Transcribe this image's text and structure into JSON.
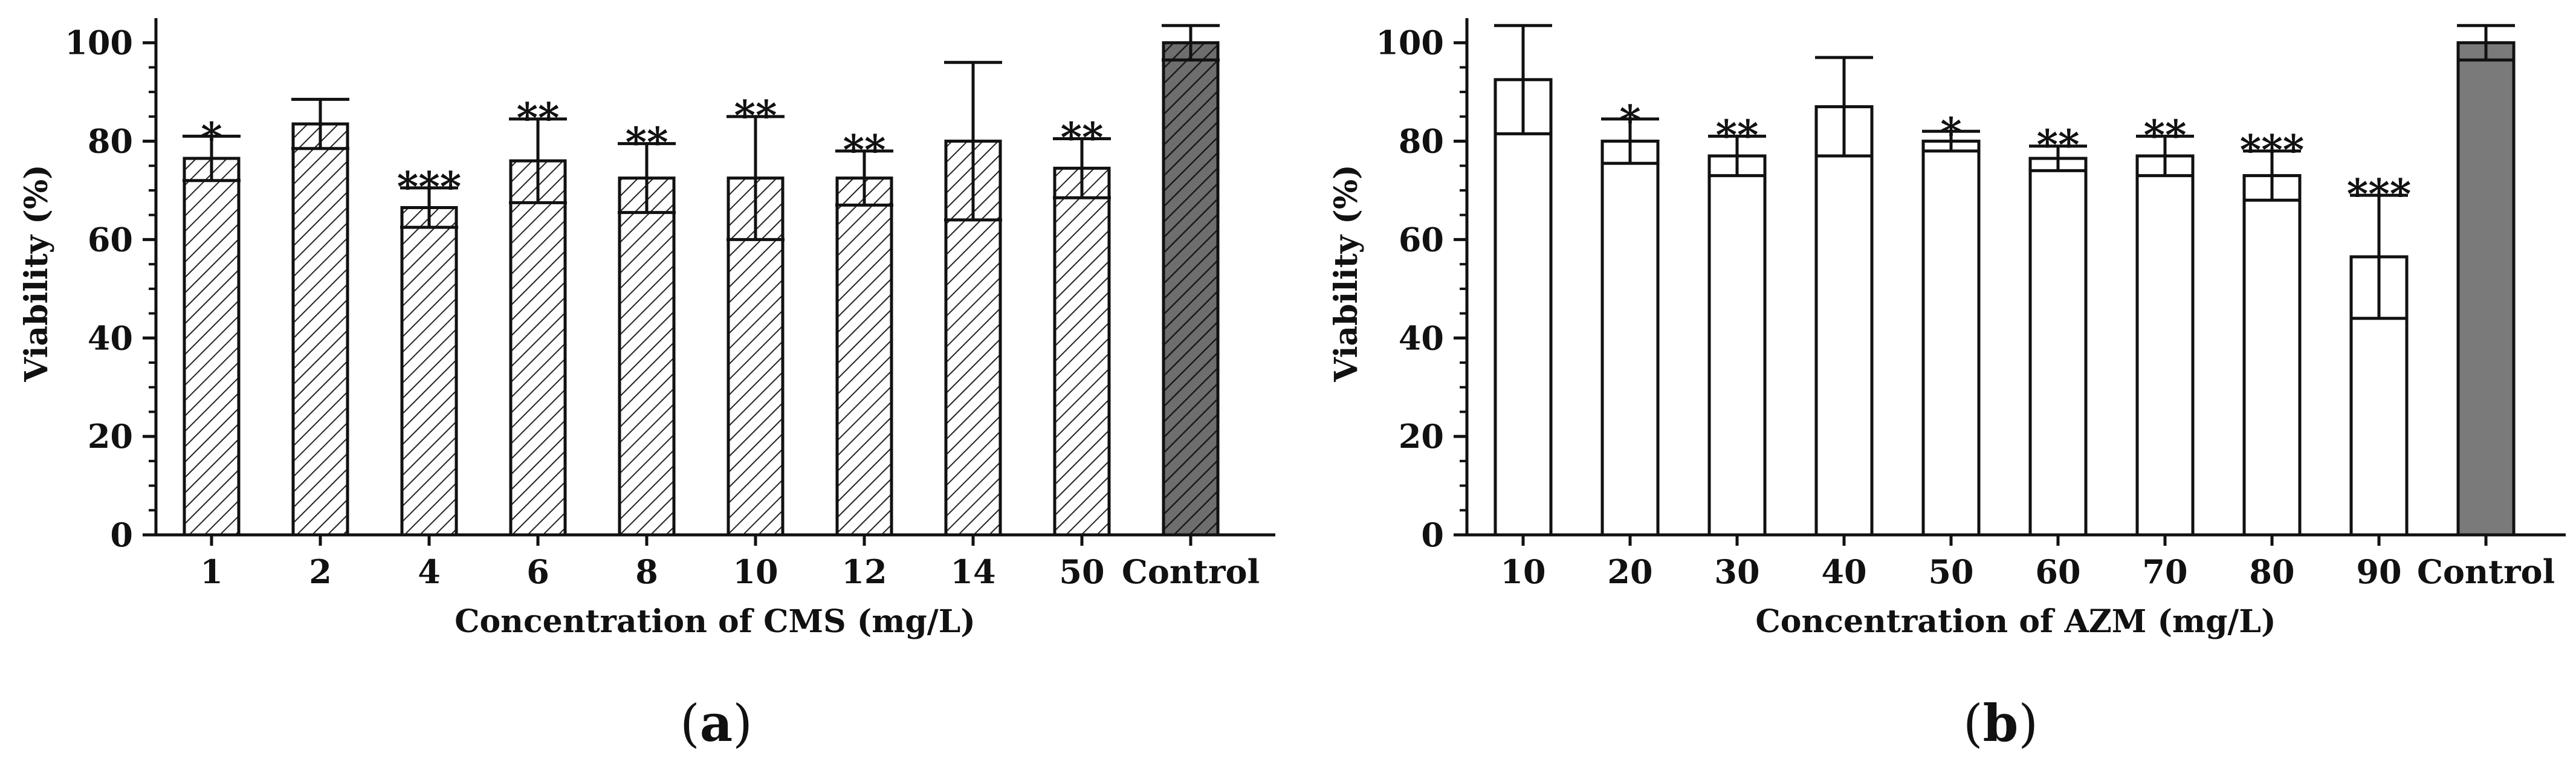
{
  "chart_data": [
    {
      "type": "bar",
      "panel": "a",
      "categories": [
        "1",
        "2",
        "4",
        "6",
        "8",
        "10",
        "12",
        "14",
        "50",
        "Control"
      ],
      "values": [
        76.5,
        83.5,
        66.5,
        76,
        72.5,
        72.5,
        72.5,
        80,
        74.5,
        100
      ],
      "errors": [
        4.5,
        5,
        4,
        8.5,
        7,
        12.5,
        5.5,
        16,
        6,
        3.5
      ],
      "significance": [
        "*",
        "",
        "***",
        "**",
        "**",
        "**",
        "**",
        "",
        "**",
        ""
      ],
      "fills": [
        "hatch",
        "hatch",
        "hatch",
        "hatch",
        "hatch",
        "hatch",
        "hatch",
        "hatch",
        "hatch",
        "dark-hatch"
      ],
      "xlabel": "Concentration of CMS (mg/L)",
      "ylabel": "Viability (%)",
      "ylim": [
        0,
        105
      ],
      "yticks": [
        0,
        20,
        40,
        60,
        80,
        100
      ],
      "panel_label": {
        "open": "(",
        "letter": "a",
        "close": ")"
      }
    },
    {
      "type": "bar",
      "panel": "b",
      "categories": [
        "10",
        "20",
        "30",
        "40",
        "50",
        "60",
        "70",
        "80",
        "90",
        "Control"
      ],
      "values": [
        92.5,
        80,
        77,
        87,
        80,
        76.5,
        77,
        73,
        56.5,
        100
      ],
      "errors": [
        11,
        4.5,
        4,
        10,
        2,
        2.5,
        4,
        5,
        12.5,
        3.5
      ],
      "significance": [
        "",
        "*",
        "**",
        "",
        "*",
        "**",
        "**",
        "***",
        "***",
        ""
      ],
      "fills": [
        "white",
        "white",
        "white",
        "white",
        "white",
        "white",
        "white",
        "white",
        "white",
        "gray"
      ],
      "xlabel": "Concentration of AZM (mg/L)",
      "ylabel": "Viability (%)",
      "ylim": [
        0,
        105
      ],
      "yticks": [
        0,
        20,
        40,
        60,
        80,
        100
      ],
      "panel_label": {
        "open": "(",
        "letter": "b",
        "close": ")"
      }
    }
  ],
  "colors": {
    "axis": "#111111",
    "hatch_line": "#222222",
    "control_fill_a": "#6e6e6e",
    "control_fill_b": "#7a7a7a",
    "bar_white": "#ffffff"
  }
}
